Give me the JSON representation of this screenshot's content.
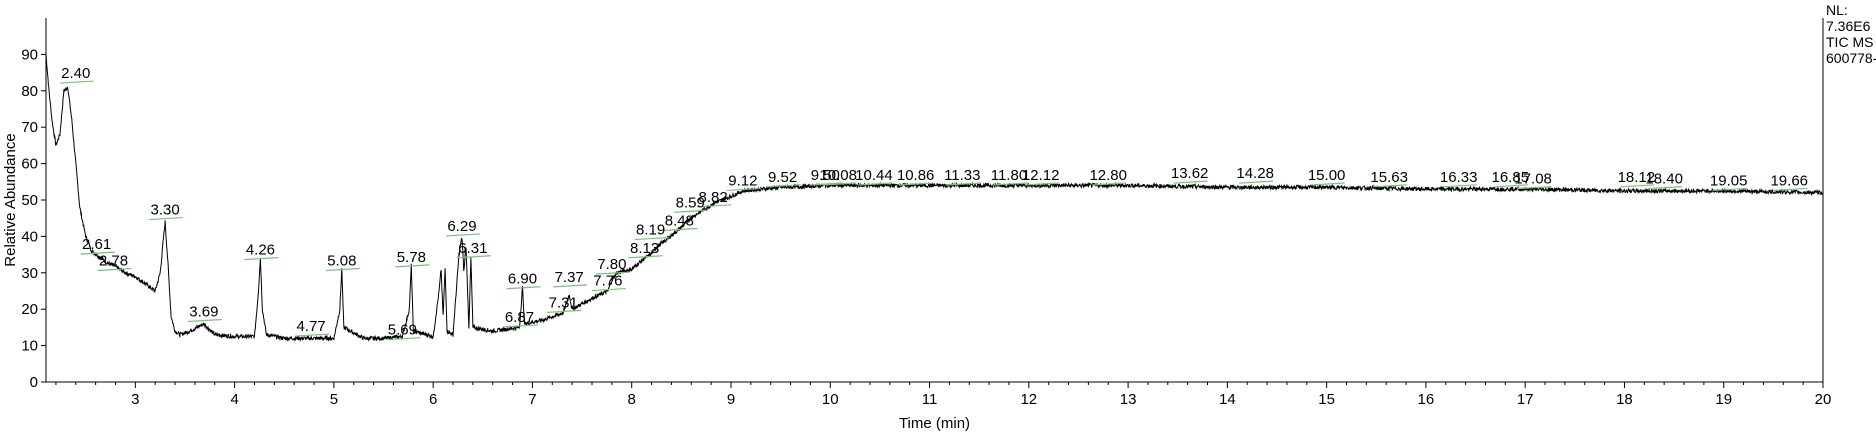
{
  "info_panel": {
    "line1": "NL:",
    "line2": "7.36E6",
    "line3": "TIC  MS",
    "line4": "600778-"
  },
  "chart_data": {
    "type": "line",
    "title": "",
    "xlabel": "Time (min)",
    "ylabel": "Relative Abundance",
    "xlim": [
      2.1,
      20
    ],
    "ylim": [
      0,
      100
    ],
    "xticks": [
      3,
      4,
      5,
      6,
      7,
      8,
      9,
      10,
      11,
      12,
      13,
      14,
      15,
      16,
      17,
      18,
      19,
      20
    ],
    "yticks": [
      0,
      10,
      20,
      30,
      40,
      50,
      60,
      70,
      80,
      90
    ],
    "series": [
      {
        "name": "",
        "x": [
          2.1,
          2.13,
          2.16,
          2.2,
          2.24,
          2.28,
          2.32,
          2.36,
          2.4,
          2.44,
          2.5,
          2.56,
          2.61,
          2.7,
          2.78,
          2.9,
          3.0,
          3.1,
          3.2,
          3.25,
          3.3,
          3.33,
          3.36,
          3.4,
          3.45,
          3.55,
          3.69,
          3.8,
          4.0,
          4.2,
          4.24,
          4.26,
          4.28,
          4.32,
          4.5,
          4.77,
          5.0,
          5.06,
          5.08,
          5.1,
          5.3,
          5.5,
          5.69,
          5.76,
          5.78,
          5.8,
          6.0,
          6.06,
          6.08,
          6.1,
          6.12,
          6.14,
          6.2,
          6.26,
          6.29,
          6.31,
          6.33,
          6.36,
          6.38,
          6.4,
          6.6,
          6.87,
          6.9,
          6.92,
          7.1,
          7.31,
          7.37,
          7.4,
          7.6,
          7.76,
          7.8,
          7.85,
          8.0,
          8.13,
          8.19,
          8.25,
          8.48,
          8.59,
          8.82,
          9.0,
          9.12,
          9.3,
          9.52,
          10.0,
          11.0,
          12.0,
          13.0,
          14.0,
          15.0,
          16.0,
          17.0,
          18.0,
          19.0,
          20.0
        ],
        "y": [
          90,
          80,
          72,
          65,
          68,
          80,
          81,
          72,
          60,
          48,
          40,
          36,
          35,
          33,
          32,
          30,
          29,
          27,
          25,
          30,
          44,
          32,
          18,
          14,
          13,
          14,
          16,
          13,
          12.5,
          12.5,
          25,
          34,
          20,
          13,
          12,
          12,
          12,
          20,
          31,
          15,
          12,
          12,
          12.5,
          20,
          32,
          14,
          12.5,
          25,
          31,
          18,
          31,
          14,
          13,
          35,
          40,
          30,
          38,
          15,
          34,
          15,
          14,
          15,
          26,
          16,
          17,
          19,
          24,
          20,
          23,
          25,
          28,
          30,
          31,
          34,
          35,
          37,
          42,
          45,
          49,
          51,
          52.5,
          53,
          53.5,
          54,
          54,
          54,
          54,
          53.5,
          53.5,
          53,
          53,
          52.5,
          52.5,
          52
        ]
      }
    ],
    "peak_labels": [
      {
        "text": "2.40",
        "x": 2.4,
        "y": 83.5
      },
      {
        "text": "2.61",
        "x": 2.61,
        "y": 36.5
      },
      {
        "text": "2.78",
        "x": 2.78,
        "y": 32
      },
      {
        "text": "3.30",
        "x": 3.3,
        "y": 46
      },
      {
        "text": "3.69",
        "x": 3.69,
        "y": 18
      },
      {
        "text": "4.26",
        "x": 4.26,
        "y": 35
      },
      {
        "text": "4.77",
        "x": 4.77,
        "y": 14
      },
      {
        "text": "5.08",
        "x": 5.08,
        "y": 32
      },
      {
        "text": "5.69",
        "x": 5.69,
        "y": 13
      },
      {
        "text": "5.78",
        "x": 5.78,
        "y": 33
      },
      {
        "text": "6.29",
        "x": 6.29,
        "y": 41.5
      },
      {
        "text": "6.31",
        "x": 6.4,
        "y": 35.5
      },
      {
        "text": "6.87",
        "x": 6.87,
        "y": 16.5
      },
      {
        "text": "6.90",
        "x": 6.9,
        "y": 27
      },
      {
        "text": "7.31",
        "x": 7.31,
        "y": 20.5
      },
      {
        "text": "7.37",
        "x": 7.37,
        "y": 27.5
      },
      {
        "text": "7.76",
        "x": 7.76,
        "y": 26.5
      },
      {
        "text": "7.80",
        "x": 7.8,
        "y": 31
      },
      {
        "text": "8.13",
        "x": 8.13,
        "y": 35.5
      },
      {
        "text": "8.19",
        "x": 8.19,
        "y": 40.5
      },
      {
        "text": "8.48",
        "x": 8.48,
        "y": 43
      },
      {
        "text": "8.59",
        "x": 8.59,
        "y": 48
      },
      {
        "text": "8.82",
        "x": 8.82,
        "y": 49.5
      },
      {
        "text": "9.12",
        "x": 9.12,
        "y": 54
      },
      {
        "text": "9.52",
        "x": 9.52,
        "y": 55
      },
      {
        "text": "9.50",
        "x": 9.95,
        "y": 55.5
      },
      {
        "text": "10.08",
        "x": 10.08,
        "y": 55.5
      },
      {
        "text": "10.44",
        "x": 10.44,
        "y": 55.5
      },
      {
        "text": "10.86",
        "x": 10.86,
        "y": 55.5
      },
      {
        "text": "11.33",
        "x": 11.33,
        "y": 55.5
      },
      {
        "text": "11.80",
        "x": 11.8,
        "y": 55.5
      },
      {
        "text": "12.12",
        "x": 12.12,
        "y": 55.5
      },
      {
        "text": "12.80",
        "x": 12.8,
        "y": 55.5
      },
      {
        "text": "13.62",
        "x": 13.62,
        "y": 56
      },
      {
        "text": "14.28",
        "x": 14.28,
        "y": 56
      },
      {
        "text": "15.00",
        "x": 15.0,
        "y": 55.5
      },
      {
        "text": "15.63",
        "x": 15.63,
        "y": 55
      },
      {
        "text": "16.33",
        "x": 16.33,
        "y": 55
      },
      {
        "text": "16.85",
        "x": 16.85,
        "y": 55
      },
      {
        "text": "17.08",
        "x": 17.08,
        "y": 54.5
      },
      {
        "text": "18.12",
        "x": 18.12,
        "y": 55
      },
      {
        "text": "18.40",
        "x": 18.4,
        "y": 54.5
      },
      {
        "text": "19.05",
        "x": 19.05,
        "y": 54
      },
      {
        "text": "19.66",
        "x": 19.66,
        "y": 54
      }
    ],
    "grid": false,
    "line_color": "#000000",
    "marker_color": "#7cc07c"
  }
}
